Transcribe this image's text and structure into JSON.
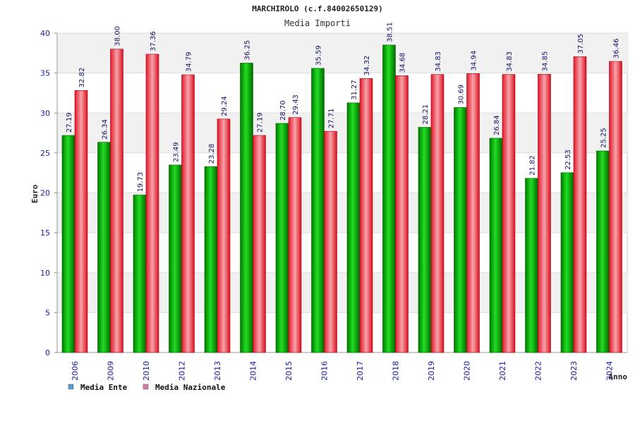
{
  "chart_data": {
    "type": "bar",
    "title": "MARCHIROLO (c.f.84002650129)",
    "subtitle": "Media Importi",
    "xlabel": "Anno",
    "ylabel": "Euro",
    "ylim": [
      0,
      40
    ],
    "yticks": [
      0,
      5,
      10,
      15,
      20,
      25,
      30,
      35,
      40
    ],
    "grid": true,
    "legend_position": "bottom-left",
    "categories": [
      "2006",
      "2009",
      "2010",
      "2012",
      "2013",
      "2014",
      "2015",
      "2016",
      "2017",
      "2018",
      "2019",
      "2020",
      "2021",
      "2022",
      "2023",
      "2024"
    ],
    "series": [
      {
        "name": "Media Ente",
        "color": "#00b000",
        "legend_color": "#5b9bd5",
        "values": [
          27.19,
          26.34,
          19.73,
          23.49,
          23.28,
          36.25,
          28.7,
          35.59,
          31.27,
          38.51,
          28.21,
          30.69,
          26.84,
          21.82,
          22.53,
          25.25
        ],
        "labels": [
          "27.19",
          "26.34",
          "19.73",
          "23.49",
          "23.28",
          "36.25",
          "28.70",
          "35.59",
          "31.27",
          "38.51",
          "28.21",
          "30.69",
          "26.84",
          "21.82",
          "22.53",
          "25.25"
        ]
      },
      {
        "name": "Media Nazionale",
        "color": "#e0182a",
        "legend_color": "#d97aa8",
        "values": [
          32.82,
          38.0,
          37.36,
          34.79,
          29.24,
          27.19,
          29.43,
          27.71,
          34.32,
          34.68,
          34.83,
          34.94,
          34.83,
          34.85,
          37.05,
          36.46
        ],
        "labels": [
          "32.82",
          "38.00",
          "37.36",
          "34.79",
          "29.24",
          "27.19",
          "29.43",
          "27.71",
          "34.32",
          "34.68",
          "34.83",
          "34.94",
          "34.83",
          "34.85",
          "37.05",
          "36.46"
        ]
      }
    ]
  }
}
